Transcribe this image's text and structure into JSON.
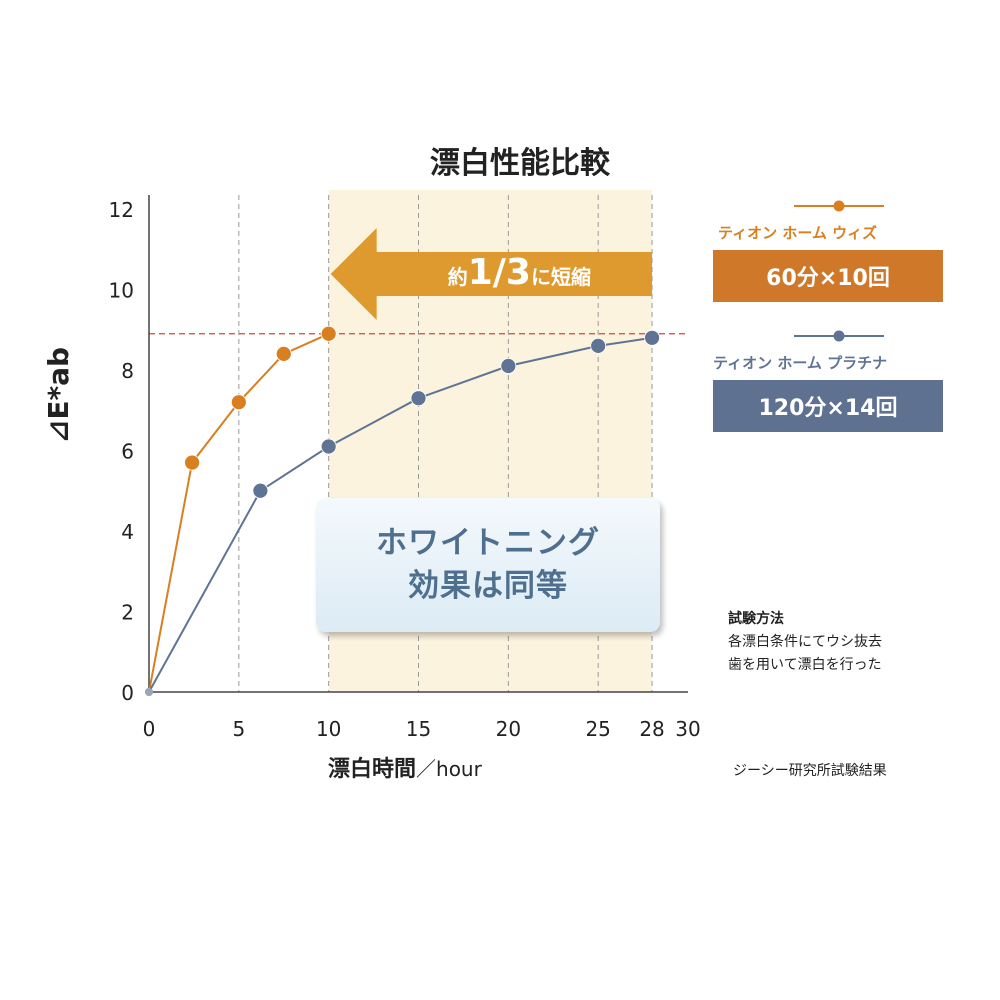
{
  "chart_data": {
    "type": "line",
    "title": "漂白性能比較",
    "xlabel": "漂白時間",
    "xlabel_unit": "／hour",
    "ylabel": "⊿E*ab",
    "xlim": [
      0,
      30
    ],
    "ylim": [
      0,
      12
    ],
    "x_ticks": [
      0,
      5,
      10,
      15,
      20,
      25,
      28,
      30
    ],
    "y_ticks": [
      0,
      2,
      4,
      6,
      8,
      10,
      12
    ],
    "reference_line_y": 8.9,
    "highlight_x_range": [
      10,
      28
    ],
    "series": [
      {
        "name": "ティオン ホーム ウィズ",
        "detail": "60分×10回",
        "color": "#d87f1f",
        "points": [
          [
            0,
            0
          ],
          [
            2.4,
            5.7
          ],
          [
            5.0,
            7.2
          ],
          [
            7.5,
            8.4
          ],
          [
            10.0,
            8.9
          ]
        ]
      },
      {
        "name": "ティオン ホーム プラチナ",
        "detail": "120分×14回",
        "color": "#5f7495",
        "points": [
          [
            0,
            0
          ],
          [
            6.2,
            5.0
          ],
          [
            10.0,
            6.1
          ],
          [
            15.0,
            7.3
          ],
          [
            20.0,
            8.1
          ],
          [
            25.0,
            8.6
          ],
          [
            28.0,
            8.8
          ]
        ]
      }
    ],
    "arrow_annotation": {
      "prefix": "約",
      "emphasis": "1/3",
      "suffix": "に短縮",
      "color": "#de9a2e"
    },
    "callout": {
      "line1": "ホワイトニング",
      "line2": "効果は同等"
    }
  },
  "method": {
    "title": "試験方法",
    "line1": "各漂白条件にてウシ抜去",
    "line2": "歯を用いて漂白を行った"
  },
  "source": "ジーシー研究所試験結果"
}
